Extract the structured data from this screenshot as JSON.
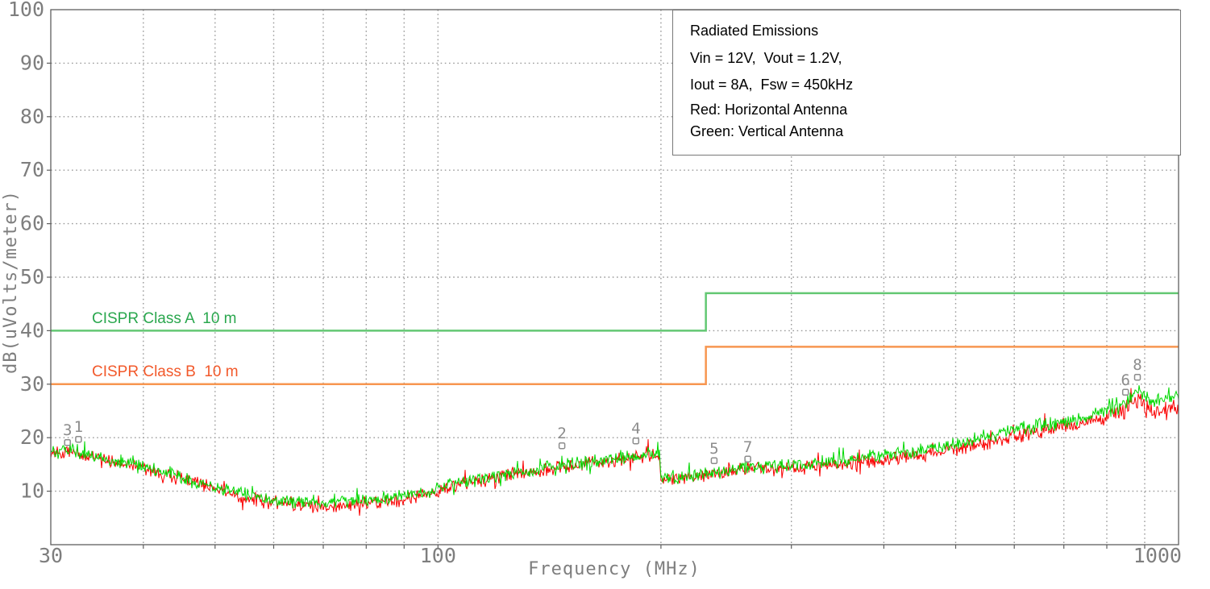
{
  "legend_box": {
    "lines": [
      "Radiated Emissions",
      "Vin = 12V,  Vout = 1.2V,",
      "Iout = 8A,  Fsw = 450kHz",
      "Red: Horizontal Antenna",
      "Green: Vertical Antenna"
    ]
  },
  "colors": {
    "trace_red": "#fa0000",
    "trace_green": "#00d800",
    "limit_a_line": "#63c873",
    "limit_a_text": "#2aa74e",
    "limit_b_line": "#f79650",
    "limit_b_text": "#f2592b",
    "axis_text": "#7e7e7e",
    "grid": "#9a9a9a",
    "border": "#5f5f5f",
    "marker": "#8c8c8c",
    "legend_text": "#000000"
  },
  "chart_data": {
    "type": "line",
    "title": "Radiated Emissions",
    "x_axis": {
      "label": "Frequency (MHz)",
      "scale": "log",
      "min": 30,
      "max": 1000,
      "major_tick_labels": [
        30,
        100,
        1000
      ],
      "grid_lines": [
        40,
        50,
        60,
        70,
        80,
        90,
        100,
        200,
        300,
        400,
        500,
        600,
        700,
        800,
        900
      ]
    },
    "y_axis": {
      "label": "dB(uVolts/meter)",
      "min": 0,
      "max": 100,
      "ticks": [
        10,
        20,
        30,
        40,
        50,
        60,
        70,
        80,
        90,
        100
      ],
      "grid_lines": [
        10,
        20,
        30,
        40,
        50,
        60,
        70,
        80,
        90
      ]
    },
    "limit_lines": [
      {
        "label": "CISPR Class A  10 m",
        "level_low_db": 40,
        "level_high_db": 47,
        "step_freq_mhz": 230
      },
      {
        "label": "CISPR Class B  10 m",
        "level_low_db": 30,
        "level_high_db": 37,
        "step_freq_mhz": 230
      }
    ],
    "markers": [
      {
        "label": "1",
        "freq": 32.7,
        "db": 19.7
      },
      {
        "label": "2",
        "freq": 147,
        "db": 18.5
      },
      {
        "label": "3",
        "freq": 31.6,
        "db": 19.1
      },
      {
        "label": "4",
        "freq": 185,
        "db": 19.4
      },
      {
        "label": "5",
        "freq": 236,
        "db": 15.7
      },
      {
        "label": "6",
        "freq": 848,
        "db": 28.5
      },
      {
        "label": "7",
        "freq": 262,
        "db": 16.0
      },
      {
        "label": "8",
        "freq": 880,
        "db": 31.3
      }
    ],
    "noise_db": 1.5,
    "series": [
      {
        "name": "Horizontal Antenna",
        "color_key": "trace_red",
        "seed": 1337,
        "anchors": [
          [
            30,
            17.2
          ],
          [
            32,
            17.4
          ],
          [
            34,
            16.4
          ],
          [
            37,
            15.3
          ],
          [
            40,
            14.3
          ],
          [
            45,
            12.3
          ],
          [
            50,
            10.4
          ],
          [
            55,
            8.7
          ],
          [
            60,
            7.8
          ],
          [
            65,
            7.4
          ],
          [
            70,
            7.3
          ],
          [
            75,
            7.5
          ],
          [
            80,
            7.8
          ],
          [
            85,
            8.1
          ],
          [
            90,
            8.6
          ],
          [
            95,
            9.3
          ],
          [
            100,
            10.1
          ],
          [
            110,
            11.5
          ],
          [
            120,
            12.6
          ],
          [
            130,
            13.4
          ],
          [
            140,
            14.1
          ],
          [
            150,
            14.8
          ],
          [
            160,
            15.3
          ],
          [
            170,
            15.7
          ],
          [
            180,
            16.1
          ],
          [
            190,
            16.6
          ],
          [
            199,
            16.8
          ],
          [
            200,
            12.2
          ],
          [
            210,
            12.3
          ],
          [
            220,
            12.6
          ],
          [
            235,
            13.2
          ],
          [
            250,
            13.8
          ],
          [
            265,
            14.3
          ],
          [
            280,
            14.1
          ],
          [
            300,
            14.4
          ],
          [
            330,
            14.8
          ],
          [
            360,
            15.2
          ],
          [
            400,
            15.9
          ],
          [
            440,
            16.6
          ],
          [
            480,
            17.4
          ],
          [
            520,
            18.3
          ],
          [
            560,
            19.3
          ],
          [
            600,
            20.2
          ],
          [
            650,
            21.2
          ],
          [
            700,
            22.0
          ],
          [
            750,
            22.8
          ],
          [
            800,
            23.8
          ],
          [
            830,
            24.6
          ],
          [
            850,
            25.3
          ],
          [
            865,
            25.8
          ],
          [
            880,
            26.3
          ],
          [
            895,
            25.9
          ],
          [
            910,
            25.3
          ],
          [
            930,
            25.1
          ],
          [
            950,
            25.4
          ],
          [
            975,
            25.7
          ],
          [
            1000,
            25.9
          ]
        ]
      },
      {
        "name": "Vertical Antenna",
        "color_key": "trace_green",
        "seed": 4242,
        "anchors": [
          [
            30,
            17.5
          ],
          [
            32,
            17.6
          ],
          [
            34,
            16.7
          ],
          [
            37,
            15.6
          ],
          [
            40,
            14.7
          ],
          [
            45,
            12.7
          ],
          [
            50,
            10.8
          ],
          [
            55,
            9.2
          ],
          [
            60,
            8.4
          ],
          [
            65,
            8.1
          ],
          [
            70,
            8.0
          ],
          [
            75,
            8.2
          ],
          [
            80,
            8.5
          ],
          [
            85,
            8.8
          ],
          [
            90,
            9.2
          ],
          [
            95,
            9.7
          ],
          [
            100,
            10.5
          ],
          [
            110,
            11.9
          ],
          [
            120,
            12.9
          ],
          [
            130,
            13.7
          ],
          [
            140,
            14.4
          ],
          [
            150,
            15.1
          ],
          [
            160,
            15.6
          ],
          [
            170,
            16.0
          ],
          [
            180,
            16.3
          ],
          [
            190,
            16.9
          ],
          [
            199,
            17.1
          ],
          [
            200,
            12.5
          ],
          [
            210,
            12.6
          ],
          [
            220,
            12.9
          ],
          [
            235,
            13.5
          ],
          [
            250,
            14.1
          ],
          [
            265,
            14.7
          ],
          [
            280,
            14.5
          ],
          [
            300,
            14.9
          ],
          [
            330,
            15.4
          ],
          [
            360,
            15.9
          ],
          [
            400,
            16.7
          ],
          [
            440,
            17.4
          ],
          [
            480,
            18.3
          ],
          [
            520,
            19.3
          ],
          [
            560,
            20.3
          ],
          [
            600,
            21.2
          ],
          [
            650,
            22.2
          ],
          [
            700,
            23.0
          ],
          [
            750,
            23.8
          ],
          [
            800,
            24.9
          ],
          [
            830,
            25.7
          ],
          [
            850,
            26.7
          ],
          [
            865,
            27.7
          ],
          [
            880,
            29.2
          ],
          [
            895,
            27.9
          ],
          [
            910,
            27.1
          ],
          [
            930,
            26.7
          ],
          [
            950,
            27.1
          ],
          [
            975,
            27.5
          ],
          [
            1000,
            27.7
          ]
        ]
      }
    ]
  }
}
